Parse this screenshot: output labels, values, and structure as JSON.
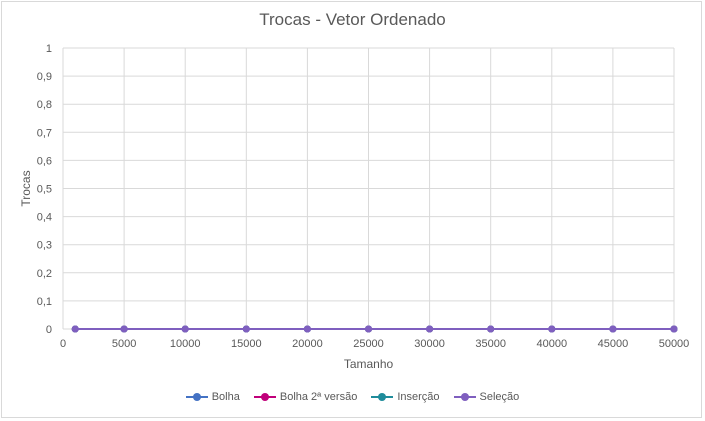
{
  "chart_data": {
    "type": "line",
    "title": "Trocas - Vetor Ordenado",
    "xlabel": "Tamanho",
    "ylabel": "Trocas",
    "x": [
      1000,
      5000,
      10000,
      15000,
      20000,
      25000,
      30000,
      35000,
      40000,
      45000,
      50000
    ],
    "xlim": [
      0,
      50000
    ],
    "ylim": [
      0,
      1
    ],
    "x_ticks": [
      "0",
      "5000",
      "10000",
      "15000",
      "20000",
      "25000",
      "30000",
      "35000",
      "40000",
      "45000",
      "50000"
    ],
    "y_ticks": [
      "0",
      "0,1",
      "0,2",
      "0,3",
      "0,4",
      "0,5",
      "0,6",
      "0,7",
      "0,8",
      "0,9",
      "1"
    ],
    "grid": true,
    "legend_position": "bottom",
    "series": [
      {
        "name": "Bolha",
        "color": "#4472c4",
        "values": [
          0,
          0,
          0,
          0,
          0,
          0,
          0,
          0,
          0,
          0,
          0
        ]
      },
      {
        "name": "Bolha 2ª versão",
        "color": "#c0007a",
        "values": [
          0,
          0,
          0,
          0,
          0,
          0,
          0,
          0,
          0,
          0,
          0
        ]
      },
      {
        "name": "Inserção",
        "color": "#1f8c9b",
        "values": [
          0,
          0,
          0,
          0,
          0,
          0,
          0,
          0,
          0,
          0,
          0
        ]
      },
      {
        "name": "Seleção",
        "color": "#7f5fbf",
        "values": [
          0,
          0,
          0,
          0,
          0,
          0,
          0,
          0,
          0,
          0,
          0
        ]
      }
    ]
  }
}
